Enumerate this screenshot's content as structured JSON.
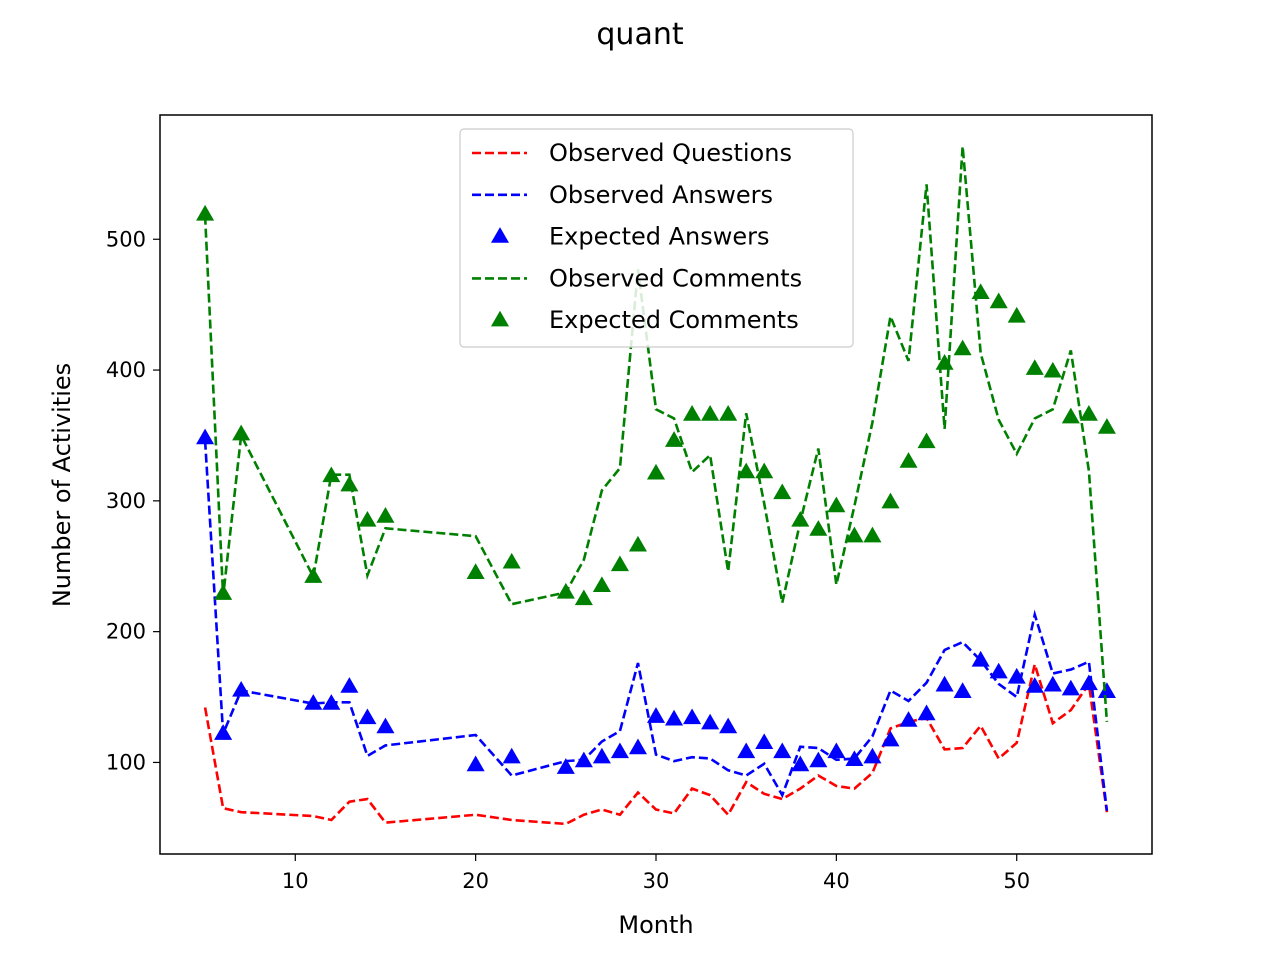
{
  "chart_data": {
    "type": "line",
    "title": "quant",
    "xlabel": "Month",
    "ylabel": "Number of Activities",
    "xlim": [
      2.5,
      57.5
    ],
    "ylim": [
      30,
      595
    ],
    "xticks": [
      10,
      20,
      30,
      40,
      50
    ],
    "yticks": [
      100,
      200,
      300,
      400,
      500
    ],
    "legend_position": "top-center",
    "colors": {
      "questions": "#ff0000",
      "answers": "#0000ff",
      "comments": "#008000"
    },
    "months": [
      5,
      6,
      7,
      11,
      12,
      13,
      14,
      15,
      20,
      22,
      25,
      26,
      27,
      28,
      29,
      30,
      31,
      32,
      33,
      34,
      35,
      36,
      37,
      38,
      39,
      40,
      41,
      42,
      43,
      44,
      45,
      46,
      47,
      48,
      49,
      50,
      51,
      52,
      53,
      54,
      55
    ],
    "series": [
      {
        "name": "Observed Questions",
        "style": "dashed",
        "color": "#ff0000",
        "values": [
          142,
          65,
          62,
          59,
          56,
          70,
          72,
          54,
          60,
          56,
          53,
          60,
          64,
          60,
          77,
          64,
          61,
          80,
          75,
          60,
          85,
          76,
          72,
          80,
          90,
          82,
          80,
          92,
          126,
          131,
          134,
          110,
          111,
          128,
          103,
          115,
          175,
          130,
          140,
          160,
          62
        ]
      },
      {
        "name": "Observed Answers",
        "style": "dashed",
        "color": "#0000ff",
        "values": [
          346,
          122,
          155,
          145,
          146,
          146,
          105,
          113,
          121,
          90,
          101,
          102,
          116,
          124,
          176,
          106,
          101,
          104,
          103,
          94,
          90,
          99,
          75,
          112,
          111,
          102,
          103,
          120,
          155,
          147,
          161,
          186,
          192,
          178,
          160,
          150,
          213,
          168,
          171,
          177,
          63
        ]
      },
      {
        "name": "Expected Answers",
        "style": "triangle",
        "color": "#0000ff",
        "values": [
          348,
          122,
          155,
          145,
          145,
          158,
          134,
          127,
          98,
          104,
          96,
          101,
          104,
          108,
          111,
          135,
          133,
          134,
          130,
          127,
          108,
          115,
          108,
          98,
          101,
          108,
          102,
          104,
          117,
          132,
          137,
          159,
          154,
          178,
          169,
          165,
          158,
          159,
          156,
          160,
          154
        ]
      },
      {
        "name": "Observed Comments",
        "style": "dashed",
        "color": "#008000",
        "values": [
          518,
          227,
          350,
          242,
          320,
          320,
          243,
          279,
          273,
          221,
          230,
          255,
          308,
          325,
          477,
          370,
          363,
          322,
          335,
          246,
          367,
          298,
          222,
          284,
          340,
          236,
          296,
          360,
          441,
          407,
          542,
          355,
          571,
          413,
          362,
          336,
          363,
          370,
          415,
          323,
          131
        ]
      },
      {
        "name": "Expected Comments",
        "style": "triangle",
        "color": "#008000",
        "values": [
          519,
          229,
          351,
          242,
          319,
          312,
          285,
          288,
          245,
          253,
          230,
          225,
          235,
          251,
          266,
          321,
          346,
          366,
          366,
          366,
          322,
          322,
          306,
          285,
          278,
          296,
          273,
          273,
          299,
          330,
          345,
          405,
          416,
          459,
          452,
          441,
          401,
          399,
          364,
          366,
          356
        ]
      }
    ]
  }
}
